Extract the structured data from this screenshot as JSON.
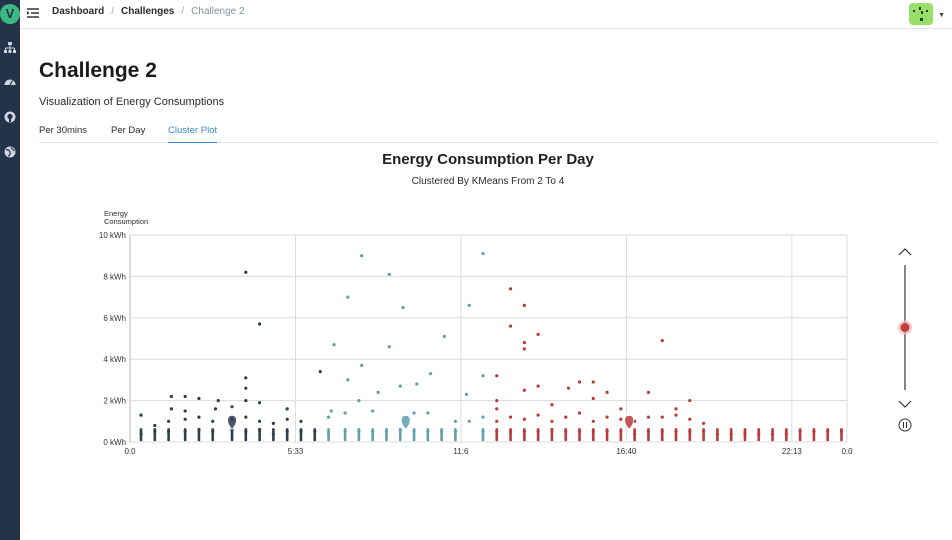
{
  "app": {
    "logo_letter": "V"
  },
  "breadcrumb": [
    "Dashboard",
    "Challenges",
    "Challenge 2"
  ],
  "page": {
    "title": "Challenge 2",
    "subtitle": "Visualization of Energy Consumptions"
  },
  "tabs": [
    {
      "label": "Per 30mins",
      "active": false
    },
    {
      "label": "Per Day",
      "active": false
    },
    {
      "label": "Cluster Plot",
      "active": true
    }
  ],
  "sidebar_icons": [
    "sitemap-icon",
    "dashboard-icon",
    "github-icon",
    "globe-icon"
  ],
  "colors": {
    "cluster_1": "#2e3d50",
    "cluster_2": "#5f9fa9",
    "cluster_3": "#b83a3a",
    "accent": "#3a86c8"
  },
  "chart_data": {
    "type": "scatter",
    "title": "Energy Consumption Per Day",
    "subtitle": "Clustered By KMeans From 2 To 4",
    "ylabel": "Energy Consumption",
    "ylim": [
      0,
      10
    ],
    "yticks": [
      "0 kWh",
      "2 kWh",
      "4 kWh",
      "6 kWh",
      "8 kWh",
      "10 kWh"
    ],
    "xlim": [
      0,
      26
    ],
    "xticks": [
      {
        "value": 0,
        "label": "0:0"
      },
      {
        "value": 6,
        "label": "5:33"
      },
      {
        "value": 12,
        "label": "11:6"
      },
      {
        "value": 18,
        "label": "16:40"
      },
      {
        "value": 24,
        "label": "22:13"
      },
      {
        "value": 26,
        "label": "0:0"
      }
    ],
    "grid": true,
    "series": [
      {
        "cluster": 1,
        "color": "#2e3d50",
        "points": [
          [
            0.4,
            0.4
          ],
          [
            0.4,
            1.3
          ],
          [
            0.9,
            0.5
          ],
          [
            0.9,
            0.8
          ],
          [
            1.4,
            0.5
          ],
          [
            1.4,
            1.0
          ],
          [
            1.5,
            1.6
          ],
          [
            1.5,
            2.2
          ],
          [
            2.0,
            0.5
          ],
          [
            2.0,
            1.1
          ],
          [
            2.0,
            1.5
          ],
          [
            2.0,
            2.2
          ],
          [
            2.5,
            0.6
          ],
          [
            2.5,
            1.2
          ],
          [
            2.5,
            2.1
          ],
          [
            3.0,
            0.5
          ],
          [
            3.0,
            1.0
          ],
          [
            3.1,
            1.6
          ],
          [
            3.2,
            2.0
          ],
          [
            3.7,
            0.6
          ],
          [
            3.7,
            1.1
          ],
          [
            3.7,
            1.7
          ],
          [
            4.2,
            0.5
          ],
          [
            4.2,
            1.2
          ],
          [
            4.2,
            2.0
          ],
          [
            4.2,
            2.6
          ],
          [
            4.2,
            3.1
          ],
          [
            4.2,
            8.2
          ],
          [
            4.7,
            0.6
          ],
          [
            4.7,
            1.0
          ],
          [
            4.7,
            1.9
          ],
          [
            4.7,
            5.7
          ],
          [
            5.2,
            0.4
          ],
          [
            5.2,
            0.9
          ],
          [
            5.7,
            0.5
          ],
          [
            5.7,
            1.1
          ],
          [
            5.7,
            1.6
          ],
          [
            6.2,
            0.5
          ],
          [
            6.2,
            1.0
          ],
          [
            6.7,
            0.5
          ],
          [
            6.9,
            3.4
          ]
        ],
        "centroid": [
          3.7,
          1.0
        ]
      },
      {
        "cluster": 2,
        "color": "#5f9fa9",
        "points": [
          [
            7.2,
            0.4
          ],
          [
            7.2,
            1.2
          ],
          [
            7.3,
            1.5
          ],
          [
            7.4,
            4.7
          ],
          [
            7.8,
            0.5
          ],
          [
            7.8,
            1.4
          ],
          [
            7.9,
            3.0
          ],
          [
            7.9,
            7.0
          ],
          [
            8.3,
            0.5
          ],
          [
            8.3,
            2.0
          ],
          [
            8.4,
            3.7
          ],
          [
            8.4,
            9.0
          ],
          [
            8.8,
            0.5
          ],
          [
            8.8,
            1.5
          ],
          [
            9.0,
            2.4
          ],
          [
            9.3,
            0.5
          ],
          [
            9.4,
            4.6
          ],
          [
            9.4,
            8.1
          ],
          [
            9.8,
            0.6
          ],
          [
            9.8,
            2.7
          ],
          [
            9.9,
            6.5
          ],
          [
            10.3,
            0.5
          ],
          [
            10.3,
            1.4
          ],
          [
            10.4,
            2.8
          ],
          [
            10.8,
            0.5
          ],
          [
            10.8,
            1.4
          ],
          [
            10.9,
            3.3
          ],
          [
            11.3,
            0.5
          ],
          [
            11.4,
            5.1
          ],
          [
            11.8,
            0.5
          ],
          [
            11.8,
            1.0
          ],
          [
            12.2,
            2.3
          ],
          [
            12.3,
            1.0
          ],
          [
            12.3,
            6.6
          ],
          [
            12.8,
            0.5
          ],
          [
            12.8,
            1.2
          ],
          [
            12.8,
            3.2
          ],
          [
            12.8,
            9.1
          ]
        ],
        "centroid": [
          10.0,
          1.0
        ]
      },
      {
        "cluster": 3,
        "color": "#b83a3a",
        "points": [
          [
            13.3,
            0.5
          ],
          [
            13.3,
            1.0
          ],
          [
            13.3,
            1.6
          ],
          [
            13.3,
            2.0
          ],
          [
            13.3,
            3.2
          ],
          [
            13.8,
            0.5
          ],
          [
            13.8,
            1.2
          ],
          [
            13.8,
            5.6
          ],
          [
            13.8,
            7.4
          ],
          [
            14.3,
            0.5
          ],
          [
            14.3,
            1.1
          ],
          [
            14.3,
            2.5
          ],
          [
            14.3,
            4.5
          ],
          [
            14.3,
            4.8
          ],
          [
            14.3,
            6.6
          ],
          [
            14.8,
            0.5
          ],
          [
            14.8,
            1.3
          ],
          [
            14.8,
            2.7
          ],
          [
            14.8,
            5.2
          ],
          [
            15.3,
            0.6
          ],
          [
            15.3,
            1.0
          ],
          [
            15.3,
            1.8
          ],
          [
            15.8,
            0.5
          ],
          [
            15.8,
            1.2
          ],
          [
            15.9,
            2.6
          ],
          [
            16.3,
            0.5
          ],
          [
            16.3,
            1.4
          ],
          [
            16.3,
            2.9
          ],
          [
            16.8,
            0.5
          ],
          [
            16.8,
            1.0
          ],
          [
            16.8,
            2.1
          ],
          [
            16.8,
            2.9
          ],
          [
            17.3,
            0.5
          ],
          [
            17.3,
            1.2
          ],
          [
            17.3,
            2.4
          ],
          [
            17.8,
            0.5
          ],
          [
            17.8,
            1.1
          ],
          [
            17.8,
            1.6
          ],
          [
            18.3,
            0.4
          ],
          [
            18.3,
            1.0
          ],
          [
            18.8,
            0.5
          ],
          [
            18.8,
            1.2
          ],
          [
            18.8,
            2.4
          ],
          [
            19.3,
            0.5
          ],
          [
            19.3,
            1.2
          ],
          [
            19.3,
            4.9
          ],
          [
            19.8,
            0.5
          ],
          [
            19.8,
            1.3
          ],
          [
            19.8,
            1.6
          ],
          [
            20.3,
            0.5
          ],
          [
            20.3,
            1.1
          ],
          [
            20.3,
            2.0
          ],
          [
            20.8,
            0.5
          ],
          [
            20.8,
            0.9
          ],
          [
            21.3,
            0.4
          ],
          [
            21.8,
            0.4
          ],
          [
            22.3,
            0.4
          ],
          [
            22.8,
            0.4
          ],
          [
            23.3,
            0.4
          ],
          [
            23.8,
            0.4
          ],
          [
            24.3,
            0.5
          ],
          [
            24.8,
            0.5
          ],
          [
            25.3,
            0.5
          ],
          [
            25.8,
            0.5
          ]
        ],
        "centroid": [
          18.1,
          1.0
        ]
      }
    ]
  },
  "controls": {
    "up_icon": "chevron-up-icon",
    "down_icon": "chevron-down-icon",
    "pause_icon": "pause-icon",
    "slider_value": 0.5
  }
}
